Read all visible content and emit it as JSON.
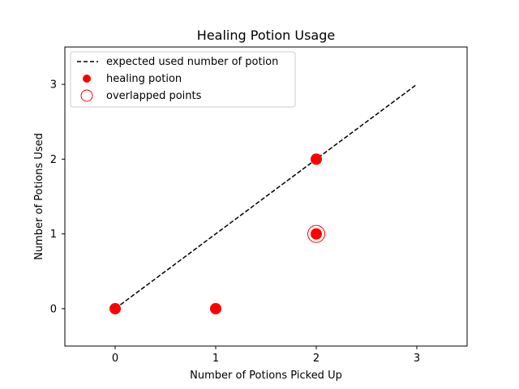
{
  "chart_data": {
    "type": "scatter",
    "title": "Healing Potion Usage",
    "xlabel": "Number of Potions Picked Up",
    "ylabel": "Number of Potions Used",
    "xlim": [
      -0.5,
      3.5
    ],
    "ylim": [
      -0.5,
      3.5
    ],
    "x_ticks": [
      0,
      1,
      2,
      3
    ],
    "y_ticks": [
      0,
      1,
      2,
      3
    ],
    "grid": false,
    "legend_location": "top-left",
    "series": [
      {
        "name": "expected used number of potion",
        "kind": "line",
        "style": "dashed",
        "color": "#000000",
        "points": [
          [
            0,
            0
          ],
          [
            3,
            3
          ]
        ]
      },
      {
        "name": "healing potion",
        "kind": "scatter",
        "color": "#ff0000",
        "points": [
          [
            0,
            0
          ],
          [
            1,
            0
          ],
          [
            2,
            2
          ],
          [
            2,
            1
          ]
        ]
      },
      {
        "name": "overlapped points",
        "kind": "scatter-hollow",
        "color": "#ff0000",
        "points": [
          [
            2,
            1
          ]
        ]
      }
    ]
  }
}
